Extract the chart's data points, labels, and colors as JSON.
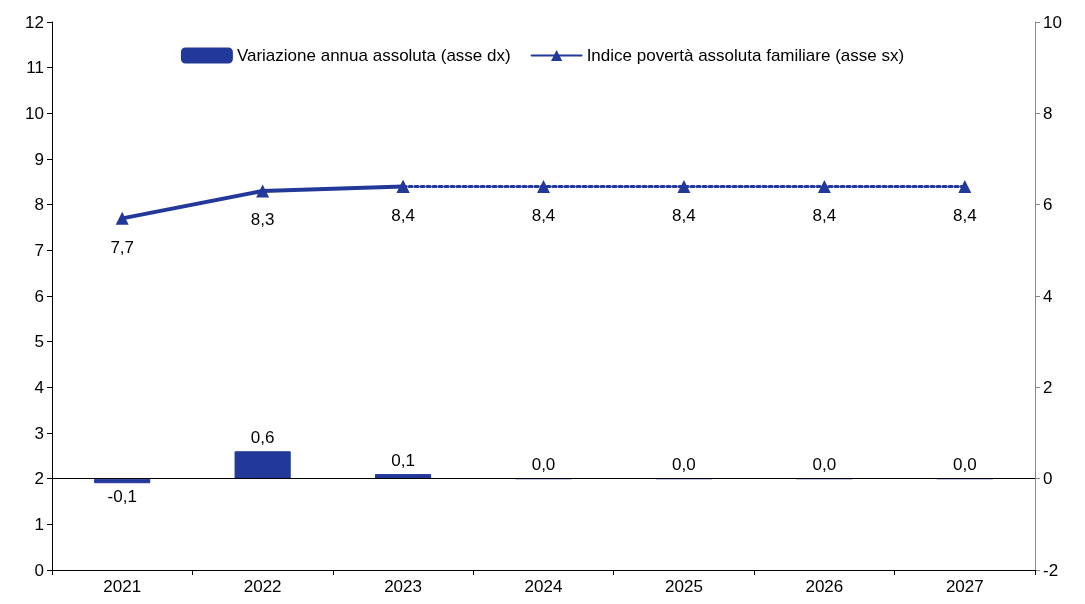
{
  "chart_data": {
    "type": "bar",
    "categories": [
      "2021",
      "2022",
      "2023",
      "2024",
      "2025",
      "2026",
      "2027"
    ],
    "series": [
      {
        "name": "Variazione annua assoluta (asse dx)",
        "axis": "y2",
        "color": "#22399a",
        "values": [
          -0.1,
          0.6,
          0.1,
          0.0,
          0.0,
          0.0,
          0.0
        ],
        "value_labels": [
          "-0,1",
          "0,6",
          "0,1",
          "0,0",
          "0,0",
          "0,0",
          "0,0"
        ]
      },
      {
        "name": "Indice povertà assoluta familiare (asse sx)",
        "type": "line",
        "color": "#22399a",
        "line_style": "solid",
        "values": [
          7.7,
          8.3,
          8.4,
          null,
          null,
          null,
          null
        ],
        "value_labels": [
          "7,7",
          "8,3",
          "8,4",
          null,
          null,
          null,
          null
        ]
      },
      {
        "type": "line",
        "color": "#22399a",
        "line_style": "dotted",
        "values": [
          null,
          null,
          8.4,
          8.4,
          8.4,
          8.4,
          8.4
        ],
        "value_labels": [
          null,
          null,
          null,
          "8,4",
          "8,4",
          "8,4",
          "8,4"
        ]
      }
    ],
    "ylim": [
      0,
      12
    ],
    "yticks": [
      0,
      1,
      2,
      3,
      4,
      5,
      6,
      7,
      8,
      9,
      10,
      11,
      12
    ],
    "y2lim": [
      -2,
      10
    ],
    "y2ticks": [
      -2,
      0,
      2,
      4,
      6,
      8,
      10
    ],
    "ref_lines": [
      {
        "axis": "y2",
        "value": 0,
        "color": "#000000"
      }
    ],
    "marker": "triangle",
    "legend": "top",
    "grid": false
  }
}
